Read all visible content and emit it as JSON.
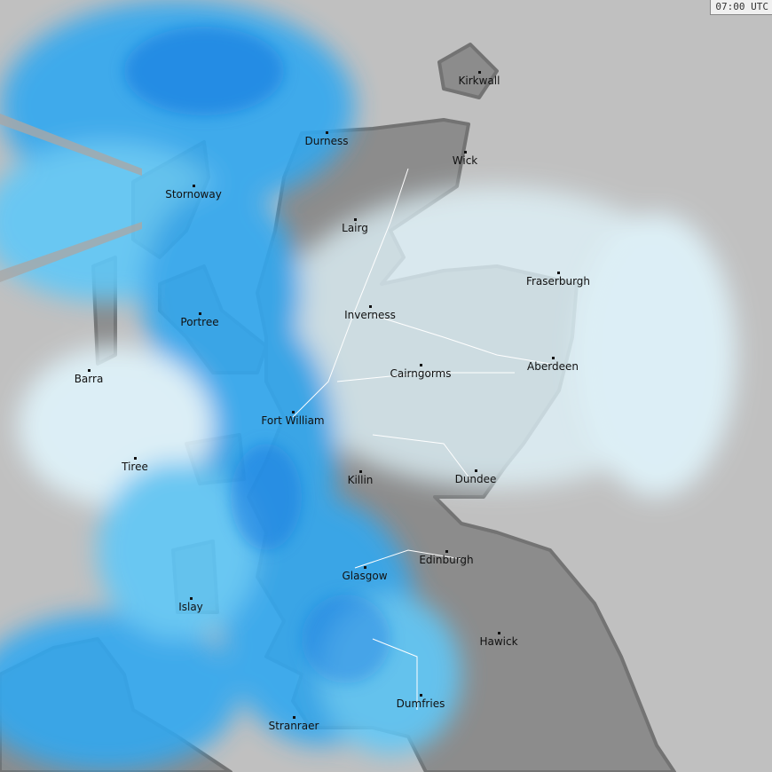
{
  "timestamp": "07:00 UTC",
  "colors": {
    "sea": "#c0c0c0",
    "land": "#8c8c8c",
    "coast": "#707070",
    "rain_light": "#e0f4fc",
    "rain_cyan": "#60e0fc",
    "rain_mid": "#30a8f0",
    "rain_heavy": "#1478e0",
    "roads": "#ffffff"
  },
  "towns": [
    "Kirkwall",
    "Durness",
    "Wick",
    "Stornoway",
    "Lairg",
    "Fraserburgh",
    "Portree",
    "Inverness",
    "Aberdeen",
    "Barra",
    "Cairngorms",
    "Fort William",
    "Tiree",
    "Killin",
    "Dundee",
    "Edinburgh",
    "Glasgow",
    "Islay",
    "Hawick",
    "Dumfries",
    "Stranraer"
  ]
}
